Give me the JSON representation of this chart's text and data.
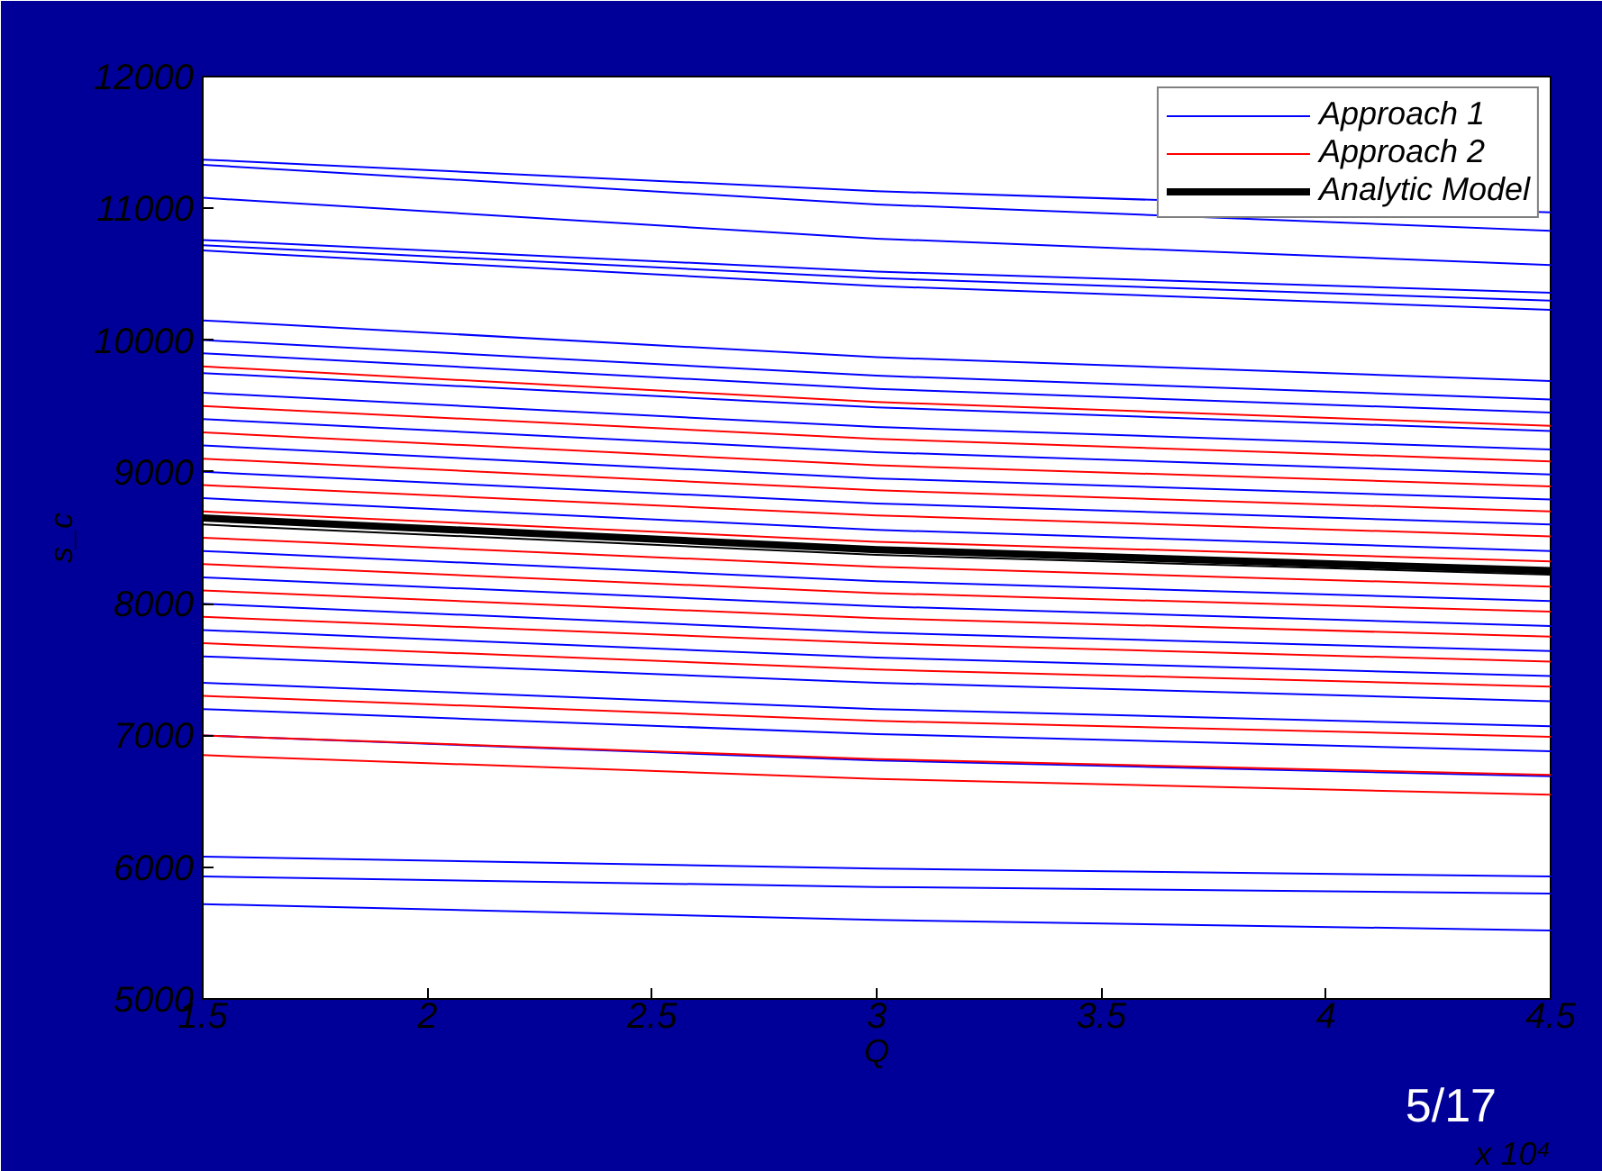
{
  "chart_data": {
    "type": "line",
    "xlabel": "Q",
    "ylabel": "s_c",
    "x": [
      1.5,
      3,
      4.5
    ],
    "xlim": [
      1.5,
      4.5
    ],
    "xticks": [
      1.5,
      2,
      2.5,
      3,
      3.5,
      4,
      4.5
    ],
    "ylim": [
      5000,
      12000
    ],
    "yticks": [
      5000,
      6000,
      7000,
      8000,
      9000,
      10000,
      11000,
      12000
    ],
    "legend": "top right",
    "annotations": [
      "x 10⁴",
      "5/17"
    ],
    "series": [
      {
        "name": "Approach 1",
        "color": "#0000ff",
        "values": [
          11370,
          11130,
          10970
        ]
      },
      {
        "color": "#0000ff",
        "values": [
          11330,
          11030,
          10830
        ]
      },
      {
        "color": "#0000ff",
        "values": [
          11080,
          10770,
          10570
        ]
      },
      {
        "color": "#0000ff",
        "values": [
          10760,
          10520,
          10360
        ]
      },
      {
        "color": "#0000ff",
        "values": [
          10720,
          10470,
          10300
        ]
      },
      {
        "color": "#0000ff",
        "values": [
          10680,
          10410,
          10230
        ]
      },
      {
        "color": "#0000ff",
        "values": [
          10150,
          9870,
          9690
        ]
      },
      {
        "color": "#0000ff",
        "values": [
          10000,
          9730,
          9550
        ]
      },
      {
        "color": "#0000ff",
        "values": [
          9900,
          9630,
          9450
        ]
      },
      {
        "color": "#0000ff",
        "values": [
          9750,
          9490,
          9310
        ]
      },
      {
        "color": "#0000ff",
        "values": [
          9600,
          9340,
          9170
        ]
      },
      {
        "color": "#0000ff",
        "values": [
          9400,
          9150,
          8980
        ]
      },
      {
        "color": "#0000ff",
        "values": [
          9200,
          8950,
          8790
        ]
      },
      {
        "color": "#0000ff",
        "values": [
          9000,
          8760,
          8600
        ]
      },
      {
        "color": "#0000ff",
        "values": [
          8800,
          8560,
          8400
        ]
      },
      {
        "color": "#0000ff",
        "values": [
          8400,
          8170,
          8020
        ]
      },
      {
        "color": "#0000ff",
        "values": [
          8200,
          7980,
          7830
        ]
      },
      {
        "color": "#0000ff",
        "values": [
          8000,
          7780,
          7640
        ]
      },
      {
        "color": "#0000ff",
        "values": [
          7800,
          7590,
          7450
        ]
      },
      {
        "color": "#0000ff",
        "values": [
          7600,
          7400,
          7260
        ]
      },
      {
        "color": "#0000ff",
        "values": [
          7400,
          7200,
          7070
        ]
      },
      {
        "color": "#0000ff",
        "values": [
          7200,
          7010,
          6880
        ]
      },
      {
        "color": "#0000ff",
        "values": [
          7000,
          6810,
          6690
        ]
      },
      {
        "color": "#0000ff",
        "values": [
          6080,
          5990,
          5930
        ]
      },
      {
        "color": "#0000ff",
        "values": [
          5930,
          5850,
          5800
        ]
      },
      {
        "color": "#0000ff",
        "values": [
          5720,
          5600,
          5520
        ]
      },
      {
        "name": "Approach 2",
        "color": "#ff0000",
        "values": [
          9800,
          9530,
          9350
        ]
      },
      {
        "color": "#ff0000",
        "values": [
          9500,
          9250,
          9080
        ]
      },
      {
        "color": "#ff0000",
        "values": [
          9300,
          9050,
          8890
        ]
      },
      {
        "color": "#ff0000",
        "values": [
          9100,
          8860,
          8700
        ]
      },
      {
        "color": "#ff0000",
        "values": [
          8900,
          8670,
          8510
        ]
      },
      {
        "color": "#ff0000",
        "values": [
          8700,
          8470,
          8320
        ]
      },
      {
        "color": "#ff0000",
        "values": [
          8500,
          8280,
          8130
        ]
      },
      {
        "color": "#ff0000",
        "values": [
          8300,
          8080,
          7940
        ]
      },
      {
        "color": "#ff0000",
        "values": [
          8100,
          7890,
          7750
        ]
      },
      {
        "color": "#ff0000",
        "values": [
          7900,
          7700,
          7560
        ]
      },
      {
        "color": "#ff0000",
        "values": [
          7700,
          7500,
          7370
        ]
      },
      {
        "color": "#ff0000",
        "values": [
          7300,
          7110,
          6990
        ]
      },
      {
        "color": "#ff0000",
        "values": [
          7000,
          6820,
          6700
        ]
      },
      {
        "color": "#ff0000",
        "values": [
          6850,
          6670,
          6550
        ]
      },
      {
        "name": "Analytic Model",
        "color": "#000000",
        "values": [
          8650,
          8410,
          8250
        ]
      },
      {
        "color": "#000000",
        "values": [
          8600,
          8370,
          8220
        ]
      }
    ]
  }
}
